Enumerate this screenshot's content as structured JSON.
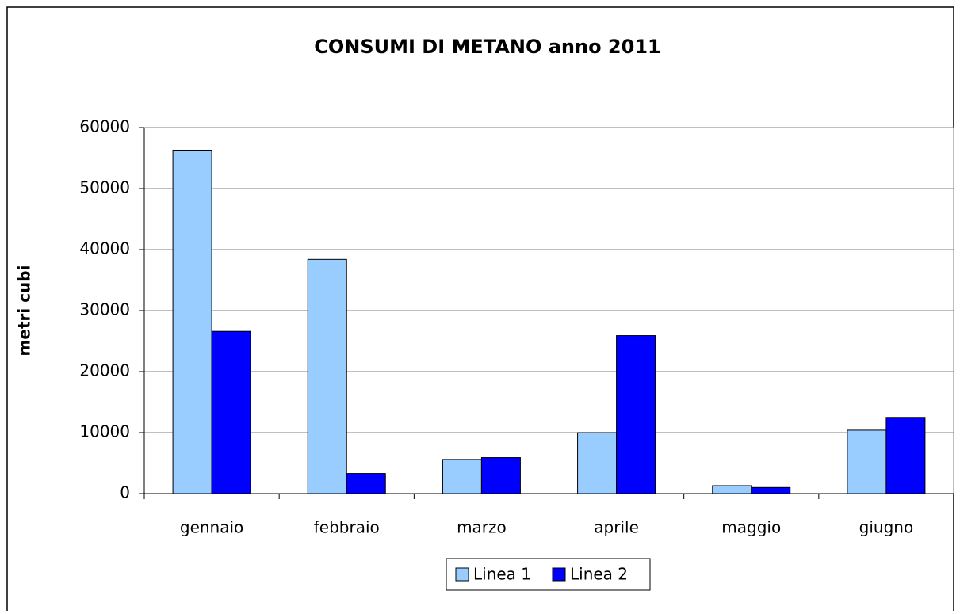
{
  "chart_data": {
    "type": "bar",
    "title": "CONSUMI DI METANO anno 2011",
    "y_label": "metri cubi",
    "categories": [
      "gennaio",
      "febbraio",
      "marzo",
      "aprile",
      "maggio",
      "giugno"
    ],
    "series": [
      {
        "name": "Linea 1",
        "color": "#99ccff",
        "values": [
          56300,
          38400,
          5600,
          10000,
          1300,
          10400
        ]
      },
      {
        "name": "Linea 2",
        "color": "#0000ff",
        "values": [
          26600,
          3300,
          5900,
          25900,
          1000,
          12500
        ]
      }
    ],
    "ylim": [
      0,
      60000
    ],
    "yticks": [
      0,
      10000,
      20000,
      30000,
      40000,
      50000,
      60000
    ],
    "grid": true,
    "legend": "bottom"
  }
}
